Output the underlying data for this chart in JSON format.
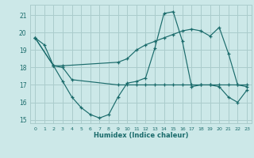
{
  "xlabel": "Humidex (Indice chaleur)",
  "bg_color": "#cce8e8",
  "grid_color": "#aacccc",
  "line_color": "#1a6b6b",
  "xlim": [
    -0.5,
    23.5
  ],
  "ylim": [
    14.8,
    21.6
  ],
  "yticks": [
    15,
    16,
    17,
    18,
    19,
    20,
    21
  ],
  "xticks": [
    0,
    1,
    2,
    3,
    4,
    5,
    6,
    7,
    8,
    9,
    10,
    11,
    12,
    13,
    14,
    15,
    16,
    17,
    18,
    19,
    20,
    21,
    22,
    23
  ],
  "curve1_x": [
    0,
    1,
    2,
    3,
    4,
    5,
    6,
    7,
    8,
    9,
    10,
    11,
    12,
    13,
    14,
    15,
    16,
    17,
    18,
    19,
    20,
    21,
    22,
    23
  ],
  "curve1_y": [
    19.7,
    19.3,
    18.1,
    17.2,
    16.3,
    15.7,
    15.3,
    15.1,
    15.3,
    16.3,
    17.1,
    17.2,
    17.4,
    19.1,
    21.1,
    21.2,
    19.5,
    16.9,
    17.0,
    17.0,
    16.9,
    16.3,
    16.0,
    16.7
  ],
  "curve2_x": [
    0,
    2,
    3,
    9,
    10,
    11,
    12,
    13,
    14,
    15,
    16,
    17,
    18,
    19,
    20,
    21,
    22,
    23
  ],
  "curve2_y": [
    19.7,
    18.1,
    18.1,
    18.3,
    18.5,
    19.0,
    19.3,
    19.5,
    19.7,
    19.9,
    20.1,
    20.2,
    20.1,
    19.8,
    20.3,
    18.8,
    17.0,
    16.9
  ],
  "curve3_x": [
    0,
    2,
    3,
    4,
    9,
    10,
    11,
    12,
    13,
    14,
    15,
    16,
    17,
    18,
    19,
    20,
    21,
    22,
    23
  ],
  "curve3_y": [
    19.7,
    18.1,
    18.0,
    17.3,
    17.0,
    17.0,
    17.0,
    17.0,
    17.0,
    17.0,
    17.0,
    17.0,
    17.0,
    17.0,
    17.0,
    17.0,
    17.0,
    17.0,
    17.0
  ]
}
